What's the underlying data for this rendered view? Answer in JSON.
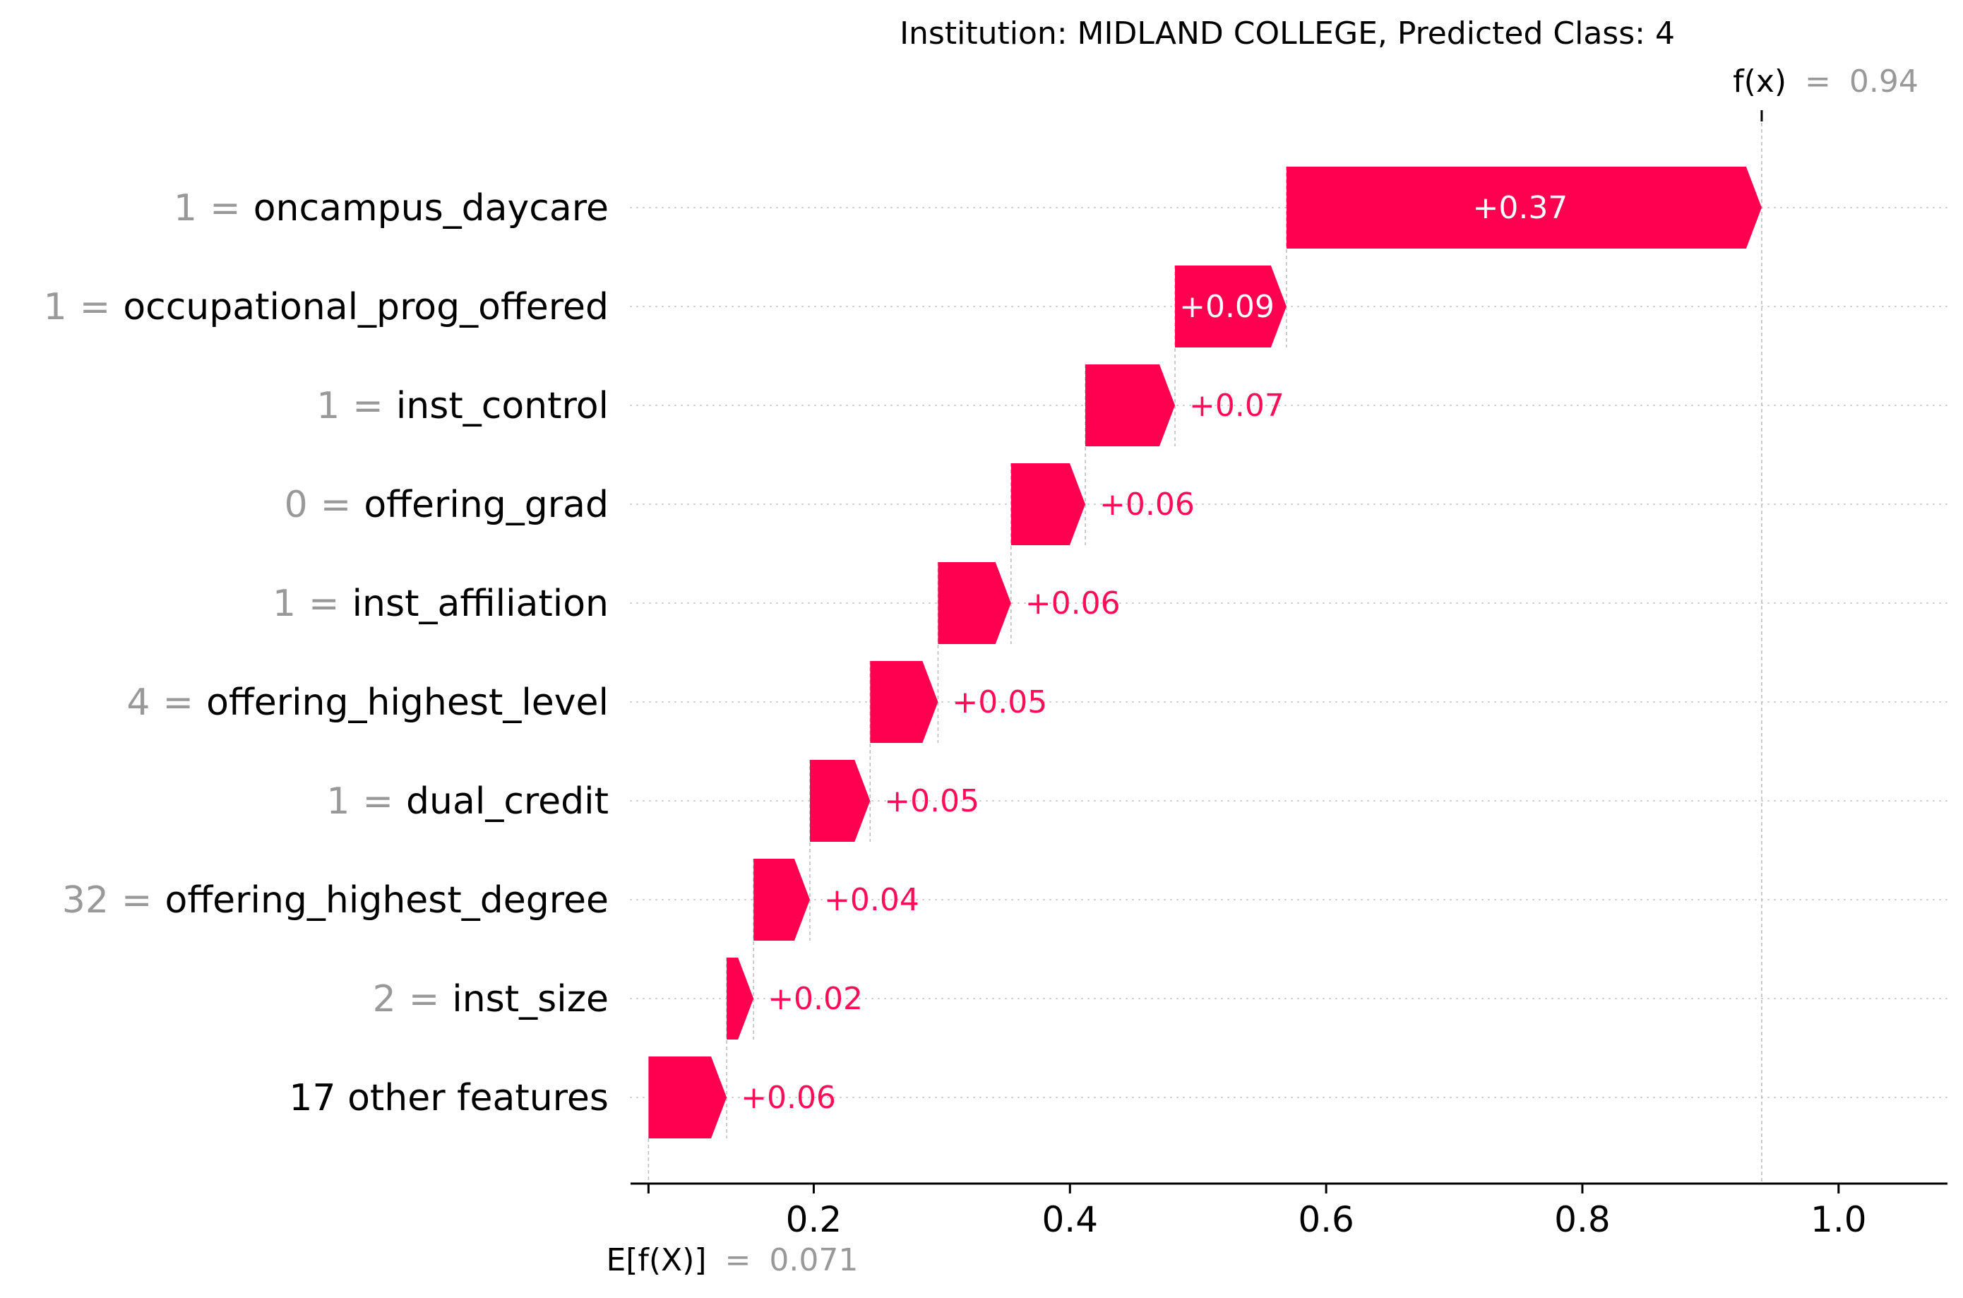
{
  "chart_data": {
    "type": "waterfall",
    "title": "Institution: MIDLAND COLLEGE, Predicted Class: 4",
    "xlim": [
      0.057,
      1.085
    ],
    "x_ticks": [
      0.2,
      0.4,
      0.6,
      0.8,
      1.0
    ],
    "x_tick_labels": [
      "0.2",
      "0.4",
      "0.6",
      "0.8",
      "1.0"
    ],
    "base_value": {
      "label": "E[f(X)]",
      "eq": "=",
      "value": 0.071,
      "display": "0.071"
    },
    "output_value": {
      "label": "f(x)",
      "eq": "=",
      "value": 0.94,
      "display": "0.94"
    },
    "rows": [
      {
        "feature_value": "1",
        "eq": "=",
        "feature": "oncampus_daycare",
        "contribution": 0.37,
        "label": "+0.37",
        "start": 0.569,
        "end": 0.94,
        "label_inside": true
      },
      {
        "feature_value": "1",
        "eq": "=",
        "feature": "occupational_prog_offered",
        "contribution": 0.09,
        "label": "+0.09",
        "start": 0.482,
        "end": 0.569,
        "label_inside": true
      },
      {
        "feature_value": "1",
        "eq": "=",
        "feature": "inst_control",
        "contribution": 0.07,
        "label": "+0.07",
        "start": 0.412,
        "end": 0.482,
        "label_inside": false
      },
      {
        "feature_value": "0",
        "eq": "=",
        "feature": "offering_grad",
        "contribution": 0.06,
        "label": "+0.06",
        "start": 0.354,
        "end": 0.412,
        "label_inside": false
      },
      {
        "feature_value": "1",
        "eq": "=",
        "feature": "inst_affiliation",
        "contribution": 0.06,
        "label": "+0.06",
        "start": 0.297,
        "end": 0.354,
        "label_inside": false
      },
      {
        "feature_value": "4",
        "eq": "=",
        "feature": "offering_highest_level",
        "contribution": 0.05,
        "label": "+0.05",
        "start": 0.244,
        "end": 0.297,
        "label_inside": false
      },
      {
        "feature_value": "1",
        "eq": "=",
        "feature": "dual_credit",
        "contribution": 0.05,
        "label": "+0.05",
        "start": 0.197,
        "end": 0.244,
        "label_inside": false
      },
      {
        "feature_value": "32",
        "eq": "=",
        "feature": "offering_highest_degree",
        "contribution": 0.04,
        "label": "+0.04",
        "start": 0.153,
        "end": 0.197,
        "label_inside": false
      },
      {
        "feature_value": "2",
        "eq": "=",
        "feature": "inst_size",
        "contribution": 0.02,
        "label": "+0.02",
        "start": 0.132,
        "end": 0.153,
        "label_inside": false
      },
      {
        "feature_value": "",
        "eq": "",
        "feature": "17 other features",
        "contribution": 0.06,
        "label": "+0.06",
        "start": 0.071,
        "end": 0.132,
        "label_inside": false
      }
    ],
    "colors": {
      "positive": "#ff0051",
      "inside_label": "#ffffff",
      "outside_label": "#ff0d57",
      "feature_value_text": "#999999",
      "feature_name_text": "#000000",
      "axis": "#000000",
      "grid": "#cccccc",
      "connector": "#bbbbbb"
    },
    "grid": "horizontal dotted"
  }
}
